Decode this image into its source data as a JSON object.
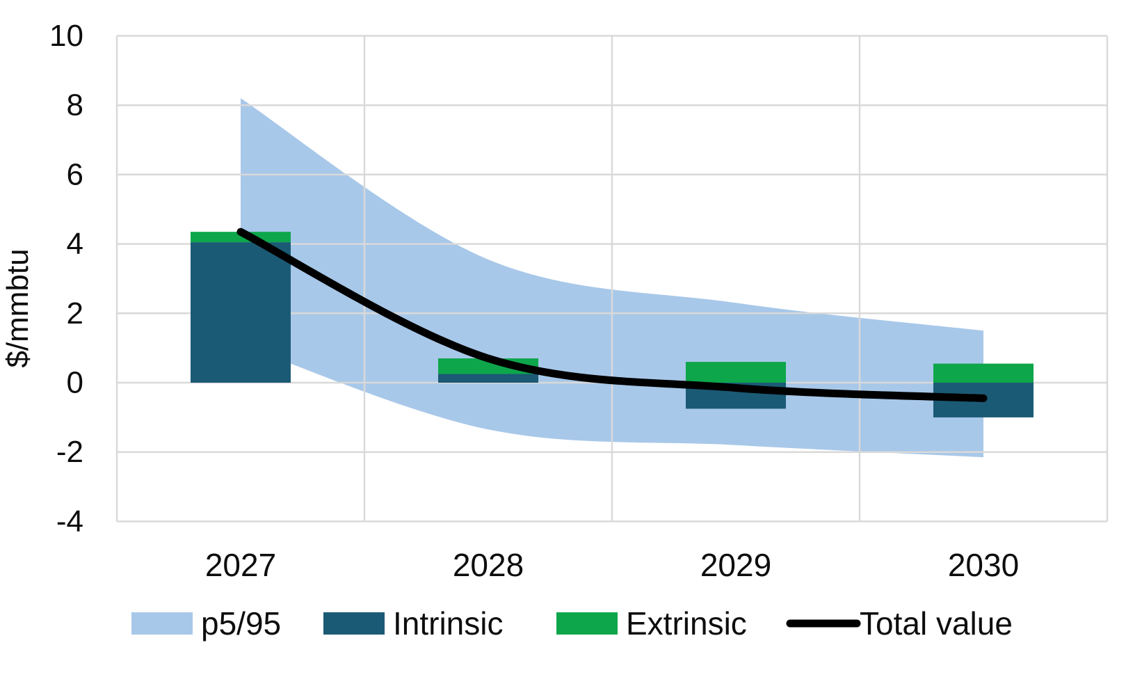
{
  "chart_data": {
    "type": "composed",
    "title": "",
    "categories": [
      "2027",
      "2028",
      "2029",
      "2030"
    ],
    "ylabel": "$/mmbtu",
    "ylim": [
      -4,
      10
    ],
    "y_tick_step": 2,
    "y_tick_labels": [
      "10",
      "8",
      "6",
      "4",
      "2",
      "0",
      "-2",
      "-4"
    ],
    "grid": true,
    "legend_position": "bottom",
    "series": [
      {
        "name": "p5/95",
        "type": "band",
        "upper": [
          8.2,
          3.55,
          2.3,
          1.5
        ],
        "lower": [
          1.1,
          -1.35,
          -1.8,
          -2.15
        ],
        "color": "#A8C8E9"
      },
      {
        "name": "Intrinsic",
        "type": "bar",
        "values": [
          4.05,
          0.25,
          -0.75,
          -1.0
        ],
        "color": "#1B5A75"
      },
      {
        "name": "Extrinsic",
        "type": "bar",
        "values": [
          0.3,
          0.45,
          0.6,
          0.55
        ],
        "color": "#0DA64B"
      },
      {
        "name": "Total value",
        "type": "line",
        "values": [
          4.35,
          0.7,
          -0.15,
          -0.45
        ],
        "color": "#000000"
      }
    ]
  },
  "legend": {
    "items": [
      {
        "label": "p5/95",
        "swatch": "area",
        "color": "#A8C8E9"
      },
      {
        "label": "Intrinsic",
        "swatch": "bar",
        "color": "#1B5A75"
      },
      {
        "label": "Extrinsic",
        "swatch": "bar",
        "color": "#0DA64B"
      },
      {
        "label": "Total value",
        "swatch": "line",
        "color": "#000000"
      }
    ]
  },
  "colors": {
    "gridline": "#D9D9D9",
    "text": "#0D0D0D",
    "background": "#FFFFFF"
  }
}
